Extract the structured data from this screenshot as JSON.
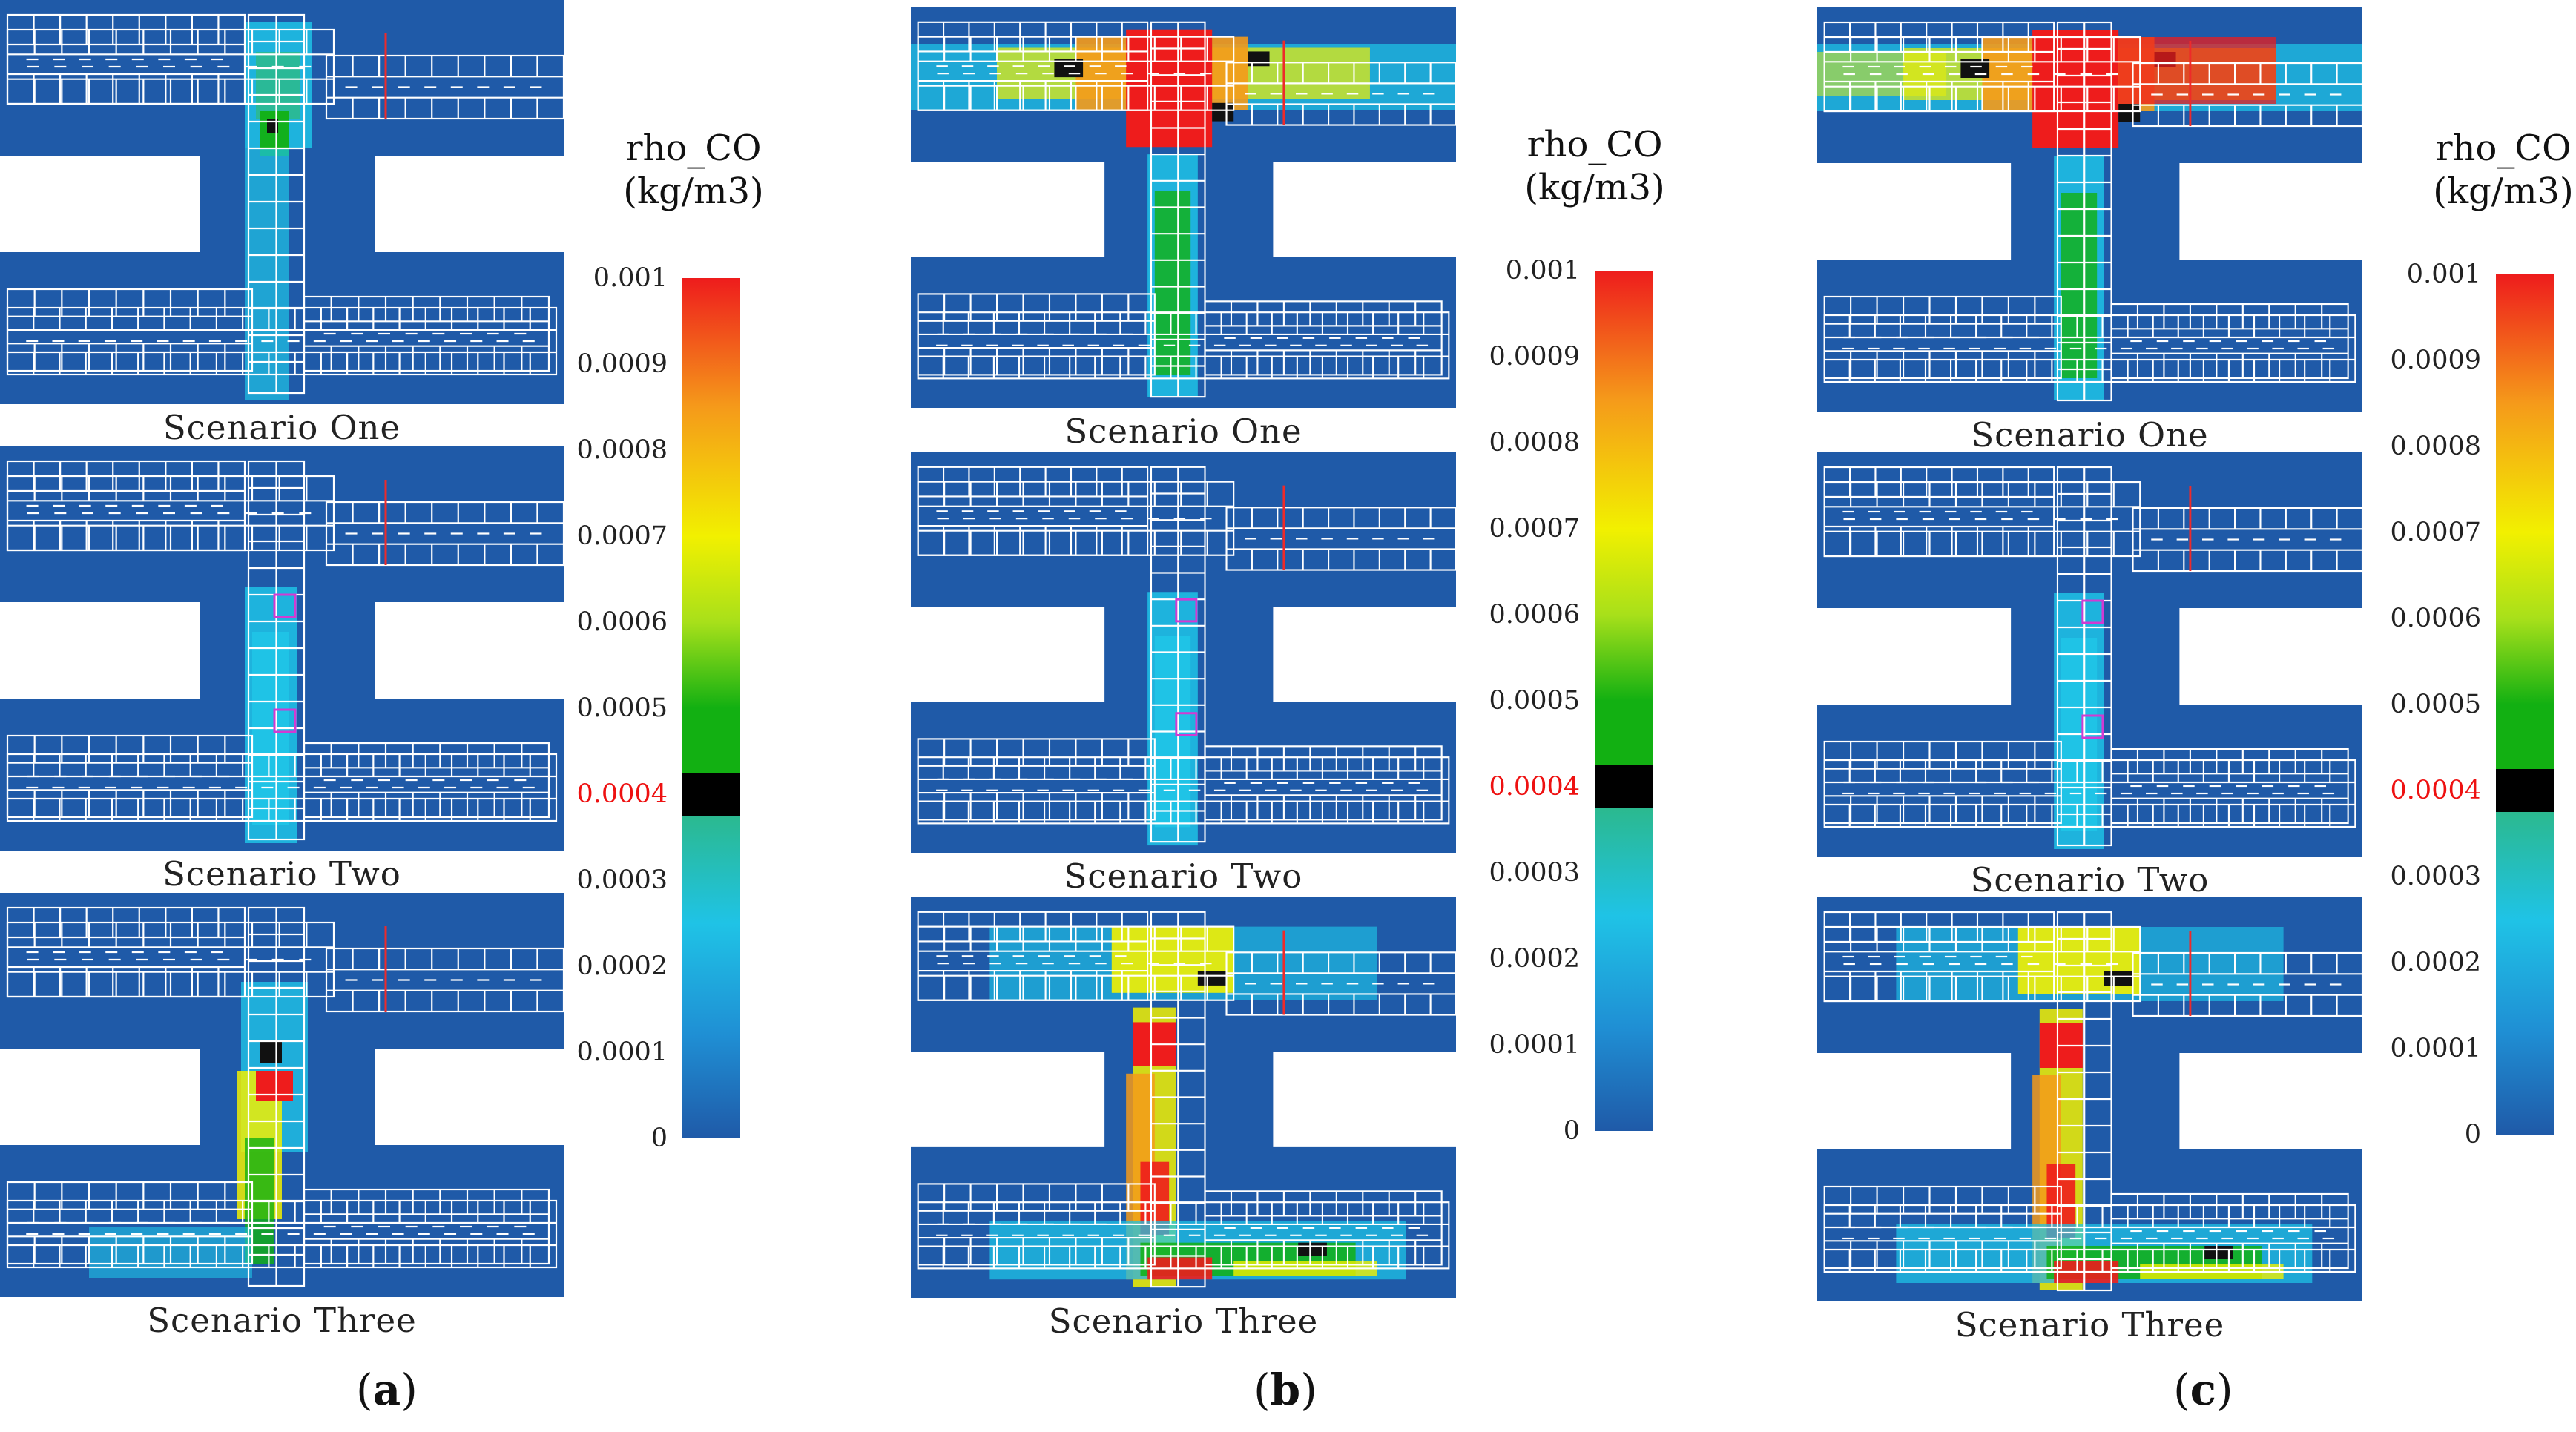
{
  "figure": {
    "legend": {
      "title_line1": "rho_CO",
      "title_line2": "(kg/m3)",
      "ticks": [
        "0.001",
        "0.0009",
        "0.0008",
        "0.0007",
        "0.0006",
        "0.0005",
        "0.0004",
        "0.0003",
        "0.0002",
        "0.0001",
        "0"
      ],
      "highlight_tick": "0.0004",
      "threshold_value": 0.0004,
      "max_value": 0.001,
      "min_value": 0,
      "colors": {
        "background": "#1f5aa8",
        "wall": "#ffffff",
        "low": "#1f5aa8",
        "cyan": "#1fc3e6",
        "teal": "#2bb98f",
        "threshold_band": "#000000",
        "green": "#12b012",
        "yellow": "#f2f000",
        "orange": "#f59a1a",
        "high": "#ee1c1c"
      }
    },
    "scenarios": [
      "Scenario One",
      "Scenario Two",
      "Scenario Three"
    ],
    "panels": [
      {
        "label_paren_open": "(",
        "label_letter": "a",
        "label_paren_close": ")"
      },
      {
        "label_paren_open": "(",
        "label_letter": "b",
        "label_paren_close": ")"
      },
      {
        "label_paren_open": "(",
        "label_letter": "c",
        "label_paren_close": ")"
      }
    ]
  }
}
